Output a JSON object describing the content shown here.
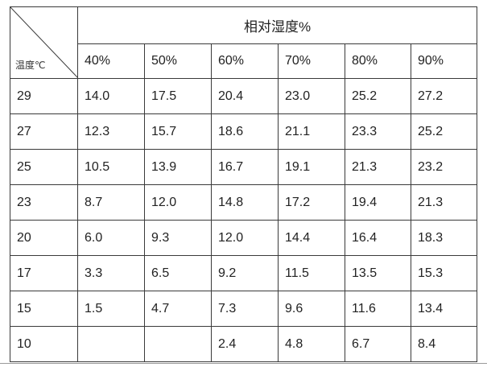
{
  "table": {
    "corner_label": "温度℃",
    "group_header": "相对湿度%",
    "humidity_headers": [
      "40%",
      "50%",
      "60%",
      "70%",
      "80%",
      "90%"
    ],
    "rows": [
      {
        "temp": "29",
        "values": [
          "14.0",
          "17.5",
          "20.4",
          "23.0",
          "25.2",
          "27.2"
        ]
      },
      {
        "temp": "27",
        "values": [
          "12.3",
          "15.7",
          "18.6",
          "21.1",
          "23.3",
          "25.2"
        ]
      },
      {
        "temp": "25",
        "values": [
          "10.5",
          "13.9",
          "16.7",
          "19.1",
          "21.3",
          "23.2"
        ]
      },
      {
        "temp": "23",
        "values": [
          "8.7",
          "12.0",
          "14.8",
          "17.2",
          "19.4",
          "21.3"
        ]
      },
      {
        "temp": "20",
        "values": [
          "6.0",
          "9.3",
          "12.0",
          "14.4",
          "16.4",
          "18.3"
        ]
      },
      {
        "temp": "17",
        "values": [
          "3.3",
          "6.5",
          "9.2",
          "11.5",
          "13.5",
          "15.3"
        ]
      },
      {
        "temp": "15",
        "values": [
          "1.5",
          "4.7",
          "7.3",
          "9.6",
          "11.6",
          "13.4"
        ]
      },
      {
        "temp": "10",
        "values": [
          "",
          "",
          "2.4",
          "4.8",
          "6.7",
          "8.4"
        ]
      }
    ]
  }
}
